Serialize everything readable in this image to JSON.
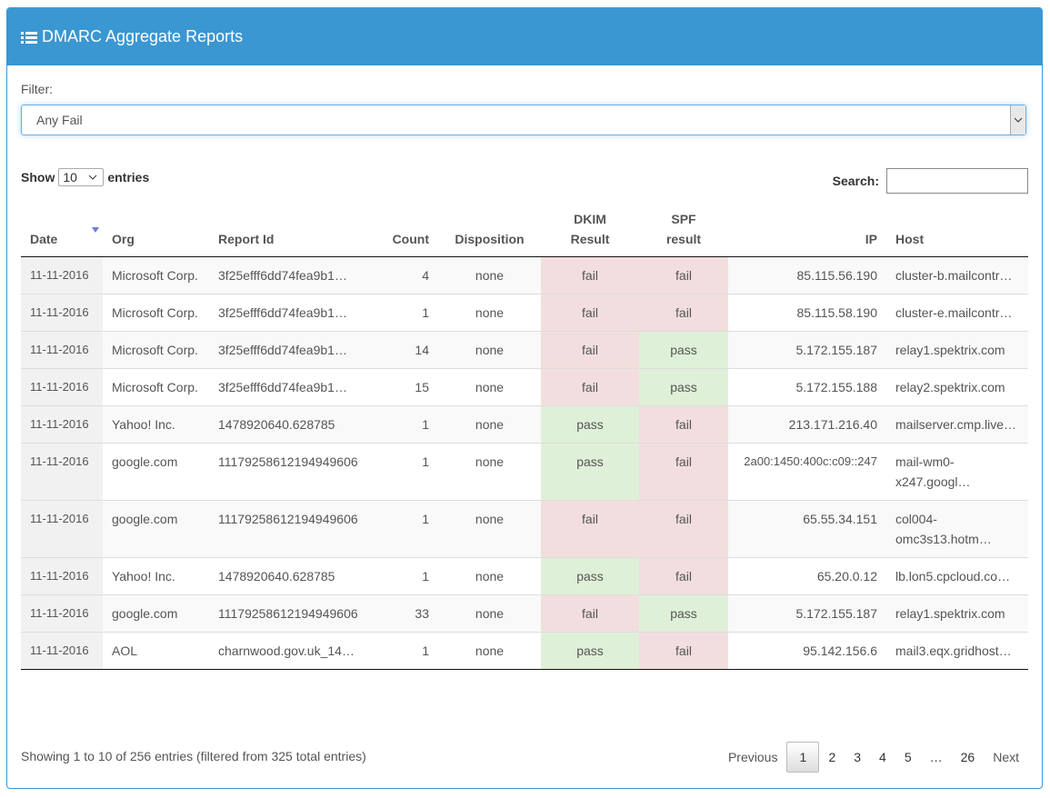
{
  "header": {
    "title": "DMARC Aggregate Reports"
  },
  "filter": {
    "label": "Filter:",
    "value": "Any Fail"
  },
  "length": {
    "before": "Show",
    "value": "10",
    "after": "entries"
  },
  "search": {
    "label": "Search:"
  },
  "result_colors": {
    "pass": "#dff0d8",
    "fail": "#f2dede"
  },
  "table": {
    "columns": [
      "Date",
      "Org",
      "Report Id",
      "Count",
      "Disposition",
      "DKIM Result",
      "SPF result",
      "IP",
      "Host"
    ],
    "rows": [
      [
        "11-11-2016",
        "Microsoft Corp.",
        "3f25efff6dd74fea9b1…",
        "4",
        "none",
        "fail",
        "fail",
        "85.115.56.190",
        "cluster-b.mailcontr…"
      ],
      [
        "11-11-2016",
        "Microsoft Corp.",
        "3f25efff6dd74fea9b1…",
        "1",
        "none",
        "fail",
        "fail",
        "85.115.58.190",
        "cluster-e.mailcontr…"
      ],
      [
        "11-11-2016",
        "Microsoft Corp.",
        "3f25efff6dd74fea9b1…",
        "14",
        "none",
        "fail",
        "pass",
        "5.172.155.187",
        "relay1.spektrix.com"
      ],
      [
        "11-11-2016",
        "Microsoft Corp.",
        "3f25efff6dd74fea9b1…",
        "15",
        "none",
        "fail",
        "pass",
        "5.172.155.188",
        "relay2.spektrix.com"
      ],
      [
        "11-11-2016",
        "Yahoo! Inc.",
        "1478920640.628785",
        "1",
        "none",
        "pass",
        "fail",
        "213.171.216.40",
        "mailserver.cmp.live…"
      ],
      [
        "11-11-2016",
        "google.com",
        "11179258612194949606",
        "1",
        "none",
        "pass",
        "fail",
        "2a00:1450:400c:c09::247",
        "mail-wm0-x247.googl…"
      ],
      [
        "11-11-2016",
        "google.com",
        "11179258612194949606",
        "1",
        "none",
        "fail",
        "fail",
        "65.55.34.151",
        "col004-omc3s13.hotm…"
      ],
      [
        "11-11-2016",
        "Yahoo! Inc.",
        "1478920640.628785",
        "1",
        "none",
        "pass",
        "fail",
        "65.20.0.12",
        "lb.lon5.cpcloud.co…"
      ],
      [
        "11-11-2016",
        "google.com",
        "11179258612194949606",
        "33",
        "none",
        "fail",
        "pass",
        "5.172.155.187",
        "relay1.spektrix.com"
      ],
      [
        "11-11-2016",
        "AOL",
        "charnwood.gov.uk_14…",
        "1",
        "none",
        "pass",
        "fail",
        "95.142.156.6",
        "mail3.eqx.gridhost…"
      ]
    ]
  },
  "info": "Showing 1 to 10 of 256 entries (filtered from 325 total entries)",
  "pagination": [
    "Previous",
    "1",
    "2",
    "3",
    "4",
    "5",
    "…",
    "26",
    "Next"
  ]
}
